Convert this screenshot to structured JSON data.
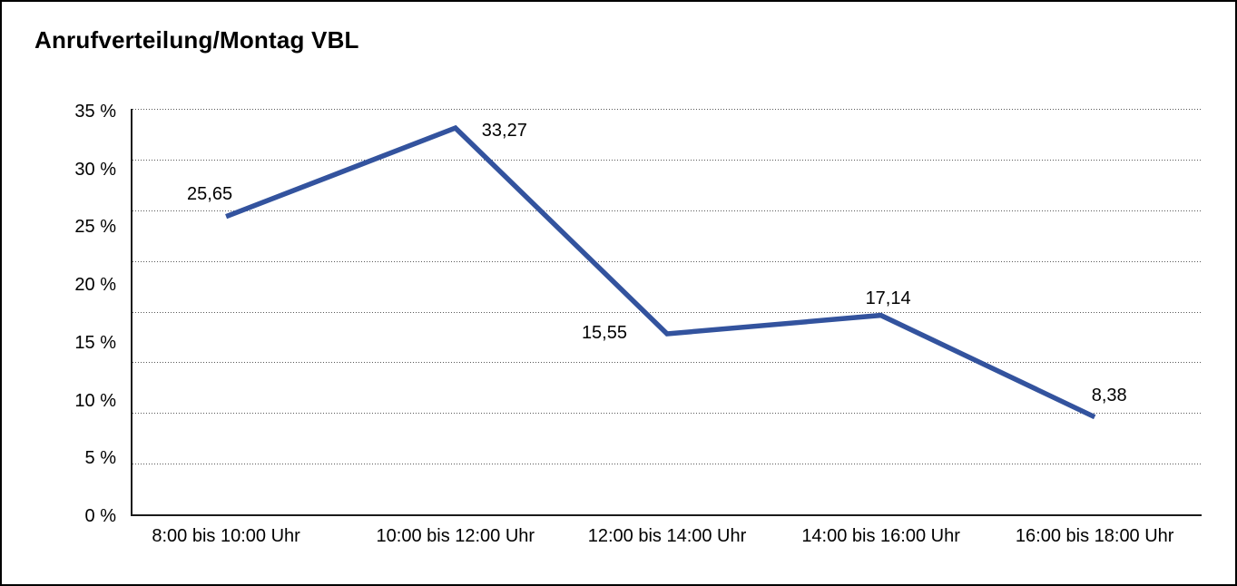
{
  "title": "Anrufverteilung/Montag VBL",
  "chart_data": {
    "type": "line",
    "title": "Anrufverteilung/Montag VBL",
    "categories": [
      "8:00 bis 10:00 Uhr",
      "10:00 bis 12:00 Uhr",
      "12:00 bis 14:00 Uhr",
      "14:00 bis 16:00 Uhr",
      "16:00 bis 18:00 Uhr"
    ],
    "values": [
      25.65,
      33.27,
      15.55,
      17.14,
      8.38
    ],
    "value_labels": [
      "25,65",
      "33,27",
      "15,55",
      "17,14",
      "8,38"
    ],
    "y_tick_labels": [
      "35 %",
      "30 %",
      "25 %",
      "20 %",
      "15 %",
      "10 %",
      "5 %",
      "0 %"
    ],
    "y_tick_values": [
      35,
      30,
      25,
      20,
      15,
      10,
      5,
      0
    ],
    "ylim": [
      0,
      35
    ],
    "xlabel": "",
    "ylabel": "",
    "legend": "none",
    "grid": "horizontal-dotted",
    "gridline_count": 8,
    "line_color": "#33539E",
    "axis_color": "#1a1a1a",
    "text_color": "#000000"
  }
}
